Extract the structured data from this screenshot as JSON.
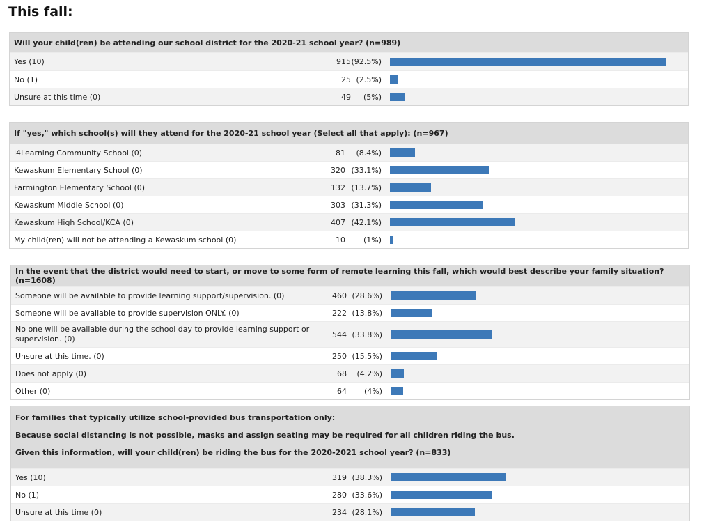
{
  "page": {
    "title": "This fall:"
  },
  "chart_data": [
    {
      "type": "bar",
      "title": "Will your child(ren) be attending our school district for the 2020-21 school year? (n=989)",
      "rows": [
        {
          "label": "Yes (10)",
          "count": "915",
          "pct_text": "(92.5%)",
          "pct": 92.5
        },
        {
          "label": "No (1)",
          "count": "25",
          "pct_text": "(2.5%)",
          "pct": 2.5
        },
        {
          "label": "Unsure at this time (0)",
          "count": "49",
          "pct_text": "(5%)",
          "pct": 5
        }
      ]
    },
    {
      "type": "bar",
      "title": "If \"yes,\" which school(s) will they attend for the 2020-21 school year (Select all that apply): (n=967)",
      "rows": [
        {
          "label": "i4Learning Community School (0)",
          "count": "81",
          "pct_text": "(8.4%)",
          "pct": 8.4
        },
        {
          "label": "Kewaskum Elementary School (0)",
          "count": "320",
          "pct_text": "(33.1%)",
          "pct": 33.1
        },
        {
          "label": "Farmington Elementary School (0)",
          "count": "132",
          "pct_text": "(13.7%)",
          "pct": 13.7
        },
        {
          "label": "Kewaskum Middle School (0)",
          "count": "303",
          "pct_text": "(31.3%)",
          "pct": 31.3
        },
        {
          "label": "Kewaskum High School/KCA (0)",
          "count": "407",
          "pct_text": "(42.1%)",
          "pct": 42.1
        },
        {
          "label": "My child(ren) will not be attending a Kewaskum school (0)",
          "count": "10",
          "pct_text": "(1%)",
          "pct": 1
        }
      ]
    },
    {
      "type": "bar",
      "title": "In the event that the district would need to start, or move to some form of remote learning this fall, which would best describe your family situation? (n=1608)",
      "rows": [
        {
          "label": "Someone will be available to provide learning support/supervision. (0)",
          "count": "460",
          "pct_text": "(28.6%)",
          "pct": 28.6
        },
        {
          "label": "Someone will be available to provide supervision ONLY. (0)",
          "count": "222",
          "pct_text": "(13.8%)",
          "pct": 13.8
        },
        {
          "label": "No one will be available during the school day to provide learning support or supervision. (0)",
          "count": "544",
          "pct_text": "(33.8%)",
          "pct": 33.8
        },
        {
          "label": "Unsure at this time. (0)",
          "count": "250",
          "pct_text": "(15.5%)",
          "pct": 15.5
        },
        {
          "label": "Does not apply (0)",
          "count": "68",
          "pct_text": "(4.2%)",
          "pct": 4.2
        },
        {
          "label": "Other (0)",
          "count": "64",
          "pct_text": "(4%)",
          "pct": 4
        }
      ]
    },
    {
      "type": "bar",
      "title_lines": [
        "For families that typically utilize school-provided bus transportation only:",
        "Because social distancing is not possible, masks and assign seating may be required for all children riding the bus.",
        "Given this information, will your child(ren) be riding the bus for the 2020-2021 school year? (n=833)"
      ],
      "rows": [
        {
          "label": "Yes (10)",
          "count": "319",
          "pct_text": "(38.3%)",
          "pct": 38.3
        },
        {
          "label": "No (1)",
          "count": "280",
          "pct_text": "(33.6%)",
          "pct": 33.6
        },
        {
          "label": "Unsure at this time (0)",
          "count": "234",
          "pct_text": "(28.1%)",
          "pct": 28.1
        }
      ]
    }
  ]
}
